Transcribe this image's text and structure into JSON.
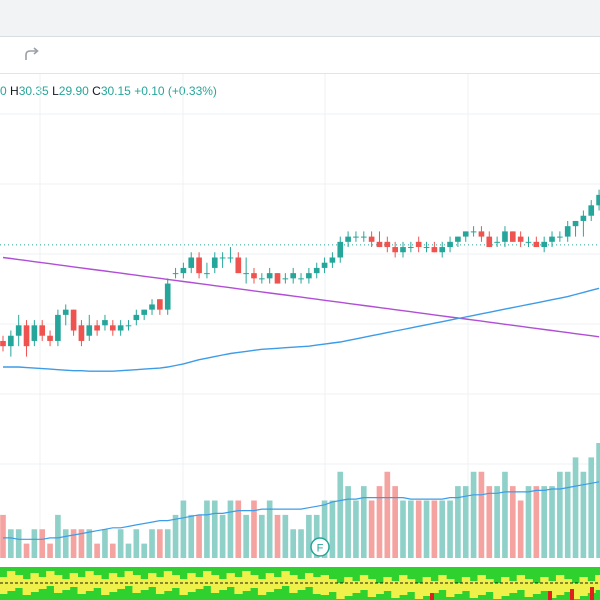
{
  "toolbar": {
    "redo_icon": "redo-arrow-icon"
  },
  "legend": {
    "open_value": "0",
    "high_label": "H",
    "high_value": "30.35",
    "low_label": "L",
    "low_value": "29.90",
    "close_label": "C",
    "close_value": "30.15",
    "change": "+0.10 (+0.33%)"
  },
  "earnings_marker": "F",
  "colors": {
    "up": "#26a69a",
    "down": "#ef5350",
    "vol_up": "#8fd1c9",
    "vol_down": "#f5a3a1",
    "ma_purple": "#b04fd6",
    "ma_blue": "#3d9ce8",
    "grid": "#eef0f3",
    "price_line": "#26a69a",
    "heat_green": "#2fd12f",
    "heat_yellow": "#f0f04a",
    "heat_red": "#e02020"
  },
  "chart_data": {
    "type": "candlestick",
    "candles": [
      {
        "o": 28.3,
        "h": 28.4,
        "l": 28.1,
        "c": 28.2
      },
      {
        "o": 28.2,
        "h": 28.5,
        "l": 28.0,
        "c": 28.4
      },
      {
        "o": 28.4,
        "h": 28.8,
        "l": 28.2,
        "c": 28.6
      },
      {
        "o": 28.6,
        "h": 28.7,
        "l": 28.0,
        "c": 28.2
      },
      {
        "o": 28.3,
        "h": 28.7,
        "l": 28.2,
        "c": 28.6
      },
      {
        "o": 28.6,
        "h": 28.7,
        "l": 28.3,
        "c": 28.4
      },
      {
        "o": 28.4,
        "h": 28.5,
        "l": 28.2,
        "c": 28.3
      },
      {
        "o": 28.3,
        "h": 28.9,
        "l": 28.2,
        "c": 28.8
      },
      {
        "o": 28.8,
        "h": 29.0,
        "l": 28.6,
        "c": 28.9
      },
      {
        "o": 28.9,
        "h": 28.9,
        "l": 28.4,
        "c": 28.5
      },
      {
        "o": 28.6,
        "h": 28.7,
        "l": 28.2,
        "c": 28.3
      },
      {
        "o": 28.4,
        "h": 28.8,
        "l": 28.3,
        "c": 28.6
      },
      {
        "o": 28.6,
        "h": 28.7,
        "l": 28.4,
        "c": 28.5
      },
      {
        "o": 28.6,
        "h": 28.8,
        "l": 28.5,
        "c": 28.7
      },
      {
        "o": 28.6,
        "h": 28.7,
        "l": 28.4,
        "c": 28.5
      },
      {
        "o": 28.5,
        "h": 28.7,
        "l": 28.4,
        "c": 28.6
      },
      {
        "o": 28.6,
        "h": 28.7,
        "l": 28.5,
        "c": 28.6
      },
      {
        "o": 28.7,
        "h": 28.9,
        "l": 28.6,
        "c": 28.8
      },
      {
        "o": 28.8,
        "h": 28.9,
        "l": 28.7,
        "c": 28.9
      },
      {
        "o": 28.9,
        "h": 29.1,
        "l": 28.8,
        "c": 29.0
      },
      {
        "o": 29.1,
        "h": 29.1,
        "l": 28.8,
        "c": 28.9
      },
      {
        "o": 28.9,
        "h": 29.5,
        "l": 28.8,
        "c": 29.4
      },
      {
        "o": 29.6,
        "h": 29.7,
        "l": 29.5,
        "c": 29.6
      },
      {
        "o": 29.6,
        "h": 29.8,
        "l": 29.5,
        "c": 29.7
      },
      {
        "o": 29.7,
        "h": 30.0,
        "l": 29.6,
        "c": 29.9
      },
      {
        "o": 29.9,
        "h": 30.0,
        "l": 29.5,
        "c": 29.6
      },
      {
        "o": 29.6,
        "h": 29.8,
        "l": 29.5,
        "c": 29.6
      },
      {
        "o": 29.7,
        "h": 30.0,
        "l": 29.6,
        "c": 29.9
      },
      {
        "o": 29.9,
        "h": 30.0,
        "l": 29.7,
        "c": 29.9
      },
      {
        "o": 29.9,
        "h": 30.1,
        "l": 29.8,
        "c": 29.9
      },
      {
        "o": 29.9,
        "h": 30.0,
        "l": 29.6,
        "c": 29.6
      },
      {
        "o": 29.6,
        "h": 29.9,
        "l": 29.4,
        "c": 29.6
      },
      {
        "o": 29.6,
        "h": 29.7,
        "l": 29.4,
        "c": 29.5
      },
      {
        "o": 29.5,
        "h": 29.6,
        "l": 29.4,
        "c": 29.5
      },
      {
        "o": 29.5,
        "h": 29.7,
        "l": 29.4,
        "c": 29.6
      },
      {
        "o": 29.6,
        "h": 29.6,
        "l": 29.4,
        "c": 29.4
      },
      {
        "o": 29.5,
        "h": 29.6,
        "l": 29.4,
        "c": 29.5
      },
      {
        "o": 29.5,
        "h": 29.7,
        "l": 29.4,
        "c": 29.6
      },
      {
        "o": 29.5,
        "h": 29.6,
        "l": 29.4,
        "c": 29.5
      },
      {
        "o": 29.5,
        "h": 29.7,
        "l": 29.4,
        "c": 29.6
      },
      {
        "o": 29.6,
        "h": 29.8,
        "l": 29.5,
        "c": 29.7
      },
      {
        "o": 29.7,
        "h": 29.9,
        "l": 29.6,
        "c": 29.8
      },
      {
        "o": 29.8,
        "h": 30.0,
        "l": 29.7,
        "c": 29.9
      },
      {
        "o": 29.9,
        "h": 30.3,
        "l": 29.8,
        "c": 30.2
      },
      {
        "o": 30.2,
        "h": 30.4,
        "l": 30.1,
        "c": 30.3
      },
      {
        "o": 30.3,
        "h": 30.4,
        "l": 30.2,
        "c": 30.3
      },
      {
        "o": 30.3,
        "h": 30.4,
        "l": 30.2,
        "c": 30.3
      },
      {
        "o": 30.3,
        "h": 30.4,
        "l": 30.1,
        "c": 30.2
      },
      {
        "o": 30.2,
        "h": 30.4,
        "l": 30.1,
        "c": 30.1
      },
      {
        "o": 30.2,
        "h": 30.3,
        "l": 30.0,
        "c": 30.1
      },
      {
        "o": 30.1,
        "h": 30.2,
        "l": 29.9,
        "c": 30.0
      },
      {
        "o": 30.0,
        "h": 30.2,
        "l": 29.9,
        "c": 30.1
      },
      {
        "o": 30.1,
        "h": 30.2,
        "l": 30.0,
        "c": 30.1
      },
      {
        "o": 30.2,
        "h": 30.3,
        "l": 30.0,
        "c": 30.1
      },
      {
        "o": 30.1,
        "h": 30.2,
        "l": 30.0,
        "c": 30.1
      },
      {
        "o": 30.1,
        "h": 30.2,
        "l": 30.0,
        "c": 30.0
      },
      {
        "o": 30.0,
        "h": 30.2,
        "l": 29.9,
        "c": 30.1
      },
      {
        "o": 30.1,
        "h": 30.3,
        "l": 30.0,
        "c": 30.2
      },
      {
        "o": 30.2,
        "h": 30.3,
        "l": 30.1,
        "c": 30.3
      },
      {
        "o": 30.3,
        "h": 30.4,
        "l": 30.2,
        "c": 30.4
      },
      {
        "o": 30.4,
        "h": 30.5,
        "l": 30.3,
        "c": 30.4
      },
      {
        "o": 30.4,
        "h": 30.5,
        "l": 30.2,
        "c": 30.3
      },
      {
        "o": 30.3,
        "h": 30.4,
        "l": 30.1,
        "c": 30.1
      },
      {
        "o": 30.2,
        "h": 30.3,
        "l": 30.1,
        "c": 30.2
      },
      {
        "o": 30.2,
        "h": 30.5,
        "l": 30.1,
        "c": 30.4
      },
      {
        "o": 30.4,
        "h": 30.4,
        "l": 30.2,
        "c": 30.2
      },
      {
        "o": 30.3,
        "h": 30.4,
        "l": 30.1,
        "c": 30.2
      },
      {
        "o": 30.2,
        "h": 30.3,
        "l": 30.1,
        "c": 30.2
      },
      {
        "o": 30.2,
        "h": 30.3,
        "l": 30.1,
        "c": 30.1
      },
      {
        "o": 30.1,
        "h": 30.3,
        "l": 30.0,
        "c": 30.2
      },
      {
        "o": 30.2,
        "h": 30.4,
        "l": 30.1,
        "c": 30.3
      },
      {
        "o": 30.3,
        "h": 30.4,
        "l": 30.2,
        "c": 30.3
      },
      {
        "o": 30.3,
        "h": 30.6,
        "l": 30.2,
        "c": 30.5
      },
      {
        "o": 30.5,
        "h": 30.6,
        "l": 30.3,
        "c": 30.6
      },
      {
        "o": 30.6,
        "h": 30.8,
        "l": 30.3,
        "c": 30.7
      },
      {
        "o": 30.7,
        "h": 31.0,
        "l": 30.6,
        "c": 30.9
      },
      {
        "o": 30.9,
        "h": 31.2,
        "l": 30.8,
        "c": 31.1
      }
    ],
    "volumes": [
      3,
      2,
      2,
      1,
      2,
      2,
      1,
      3,
      2,
      2,
      2,
      2,
      1,
      2,
      1,
      2,
      1,
      2,
      1,
      2,
      2,
      2,
      3,
      4,
      3,
      3,
      4,
      4,
      3,
      4,
      4,
      3,
      4,
      3,
      4,
      3,
      3,
      2,
      2,
      3,
      3,
      4,
      4,
      6,
      5,
      4,
      5,
      4,
      5,
      6,
      5,
      4,
      4,
      4,
      4,
      4,
      4,
      4,
      5,
      5,
      6,
      6,
      5,
      5,
      6,
      5,
      4,
      5,
      5,
      5,
      5,
      6,
      6,
      7,
      6,
      7,
      8
    ],
    "volume_ma": [
      1.4,
      1.4,
      1.3,
      1.3,
      1.3,
      1.3,
      1.4,
      1.4,
      1.5,
      1.6,
      1.7,
      1.8,
      1.9,
      2.0,
      2.1,
      2.1,
      2.2,
      2.3,
      2.4,
      2.5,
      2.6,
      2.6,
      2.7,
      2.8,
      2.9,
      3.0,
      3.0,
      3.1,
      3.1,
      3.2,
      3.3,
      3.3,
      3.3,
      3.4,
      3.4,
      3.4,
      3.4,
      3.4,
      3.4,
      3.5,
      3.6,
      3.7,
      3.9,
      4.0,
      4.1,
      4.1,
      4.2,
      4.2,
      4.2,
      4.2,
      4.2,
      4.2,
      4.1,
      4.1,
      4.1,
      4.1,
      4.1,
      4.2,
      4.2,
      4.3,
      4.4,
      4.4,
      4.5,
      4.5,
      4.6,
      4.6,
      4.6,
      4.6,
      4.7,
      4.7,
      4.8,
      4.8,
      4.9,
      5.0,
      5.1,
      5.2,
      5.3
    ],
    "ma_purple": [
      29.9,
      29.88,
      29.86,
      29.84,
      29.82,
      29.8,
      29.78,
      29.76,
      29.74,
      29.72,
      29.7,
      29.68,
      29.66,
      29.64,
      29.62,
      29.6,
      29.58,
      29.56,
      29.54,
      29.52,
      29.5,
      29.48,
      29.46,
      29.44,
      29.42,
      29.4,
      29.38,
      29.36,
      29.34,
      29.32,
      29.3,
      29.28,
      29.26,
      29.24,
      29.22,
      29.2,
      29.18,
      29.16,
      29.14,
      29.12,
      29.1,
      29.08,
      29.06,
      29.04,
      29.02,
      29.0,
      28.98,
      28.96,
      28.94,
      28.92,
      28.9,
      28.88,
      28.86,
      28.84,
      28.82,
      28.8,
      28.78,
      28.76,
      28.74,
      28.72,
      28.7,
      28.68,
      28.66,
      28.64,
      28.62,
      28.6,
      28.58,
      28.56,
      28.54,
      28.52,
      28.5,
      28.48,
      28.46,
      28.44,
      28.42,
      28.4,
      28.38
    ],
    "ma_blue": [
      27.8,
      27.8,
      27.8,
      27.79,
      27.78,
      27.77,
      27.76,
      27.75,
      27.74,
      27.73,
      27.73,
      27.72,
      27.72,
      27.72,
      27.72,
      27.73,
      27.74,
      27.75,
      27.76,
      27.77,
      27.78,
      27.8,
      27.83,
      27.86,
      27.9,
      27.94,
      27.97,
      28.0,
      28.03,
      28.06,
      28.08,
      28.1,
      28.12,
      28.14,
      28.15,
      28.16,
      28.17,
      28.18,
      28.19,
      28.2,
      28.22,
      28.24,
      28.26,
      28.28,
      28.31,
      28.34,
      28.37,
      28.4,
      28.43,
      28.46,
      28.49,
      28.52,
      28.55,
      28.58,
      28.61,
      28.64,
      28.67,
      28.7,
      28.73,
      28.76,
      28.79,
      28.82,
      28.85,
      28.88,
      28.91,
      28.94,
      28.97,
      29.0,
      29.03,
      29.06,
      29.09,
      29.12,
      29.15,
      29.19,
      29.23,
      29.27,
      29.31
    ],
    "last_price": 30.15,
    "heat_rows": 3,
    "grid": true
  }
}
